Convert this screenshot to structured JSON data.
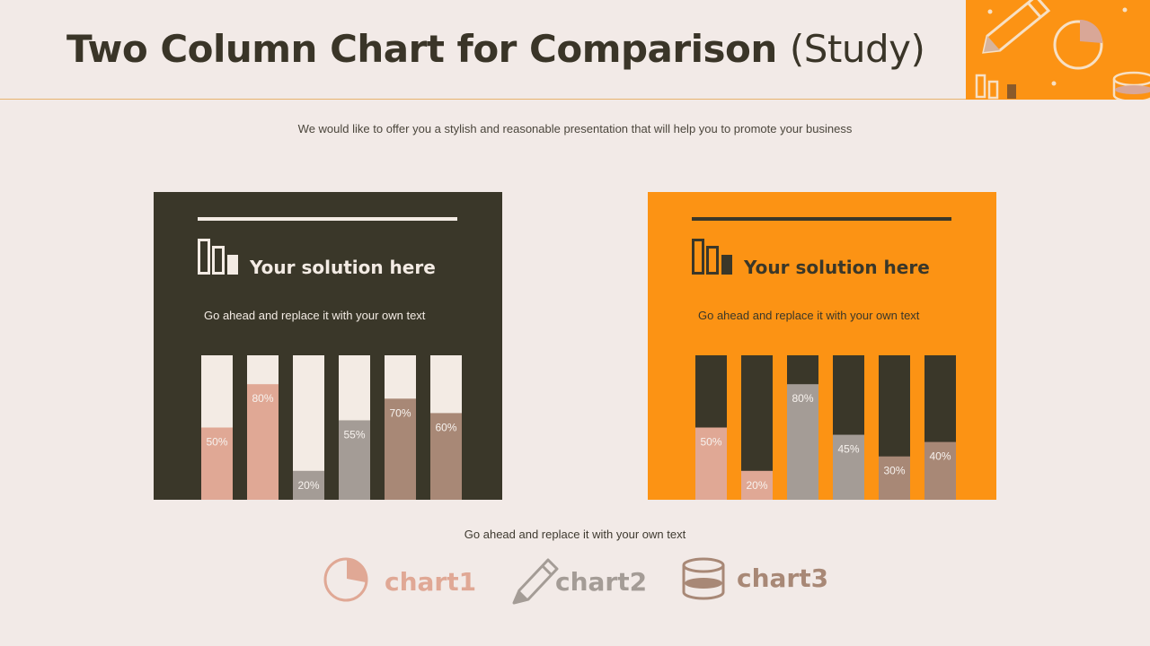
{
  "header": {
    "title_main": "Two Column Chart for Comparison",
    "title_paren": "(Study)"
  },
  "subtitle": "We would like to offer you a stylish and reasonable presentation that will help you to promote your business",
  "panels": [
    {
      "heading": "Your solution here",
      "description": "Go ahead and replace it with your own text",
      "background": "#3a3729",
      "track_color": "#f3ebe4"
    },
    {
      "heading": "Your solution here",
      "description": "Go ahead and replace it with your own text",
      "background": "#fc9314",
      "track_color": "#3a3729"
    }
  ],
  "chart_data": [
    {
      "type": "bar",
      "values": [
        50,
        80,
        20,
        55,
        70,
        60
      ],
      "labels": [
        "50%",
        "80%",
        "20%",
        "55%",
        "70%",
        "60%"
      ],
      "colors": [
        "#e0a895",
        "#e0a895",
        "#a49c96",
        "#a49c96",
        "#a88876",
        "#a88876"
      ],
      "ylim": [
        0,
        100
      ]
    },
    {
      "type": "bar",
      "values": [
        50,
        20,
        80,
        45,
        30,
        40
      ],
      "labels": [
        "50%",
        "20%",
        "80%",
        "45%",
        "30%",
        "40%"
      ],
      "colors": [
        "#e0a895",
        "#e0a895",
        "#a49c96",
        "#a49c96",
        "#a88876",
        "#a88876"
      ],
      "ylim": [
        0,
        100
      ]
    }
  ],
  "footer_text": "Go ahead and replace it with your own text",
  "legend": [
    {
      "icon": "pie-chart-icon",
      "label": "chart1",
      "color": "#e0a895"
    },
    {
      "icon": "pencil-icon",
      "label": "chart2",
      "color": "#a49c96"
    },
    {
      "icon": "database-icon",
      "label": "chart3",
      "color": "#a88876"
    }
  ],
  "colors": {
    "background": "#f2eae7",
    "dark": "#3a3729",
    "orange": "#fc9314",
    "cream": "#f3ebe4"
  }
}
